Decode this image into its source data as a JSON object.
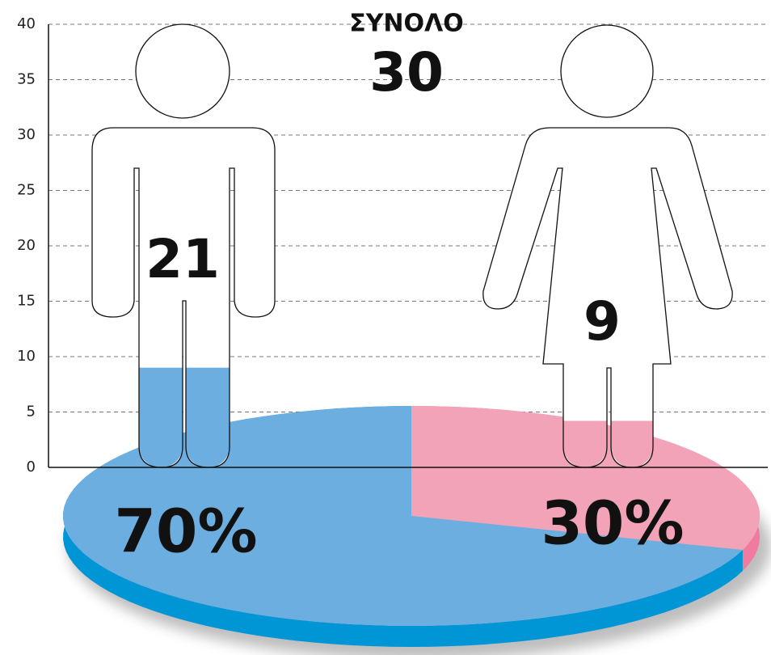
{
  "chart_data": [
    {
      "type": "pictogram",
      "title": "ΣΥΝΟΛΟ",
      "total": 30,
      "values": [
        21,
        9
      ],
      "levels": [
        9,
        4.2
      ],
      "colors": [
        "#6caee0",
        "#f3a3b8"
      ],
      "ylim": [
        0,
        40
      ],
      "yticks": [
        0,
        5,
        10,
        15,
        20,
        25,
        30,
        35,
        40
      ],
      "grid": true
    },
    {
      "type": "pie",
      "values": [
        70,
        30
      ],
      "value_labels": [
        "70%",
        "30%"
      ],
      "colors": [
        "#6caee0",
        "#f3a3b8"
      ],
      "side_colors": [
        "#0096d6",
        "#f07aa0"
      ]
    }
  ]
}
